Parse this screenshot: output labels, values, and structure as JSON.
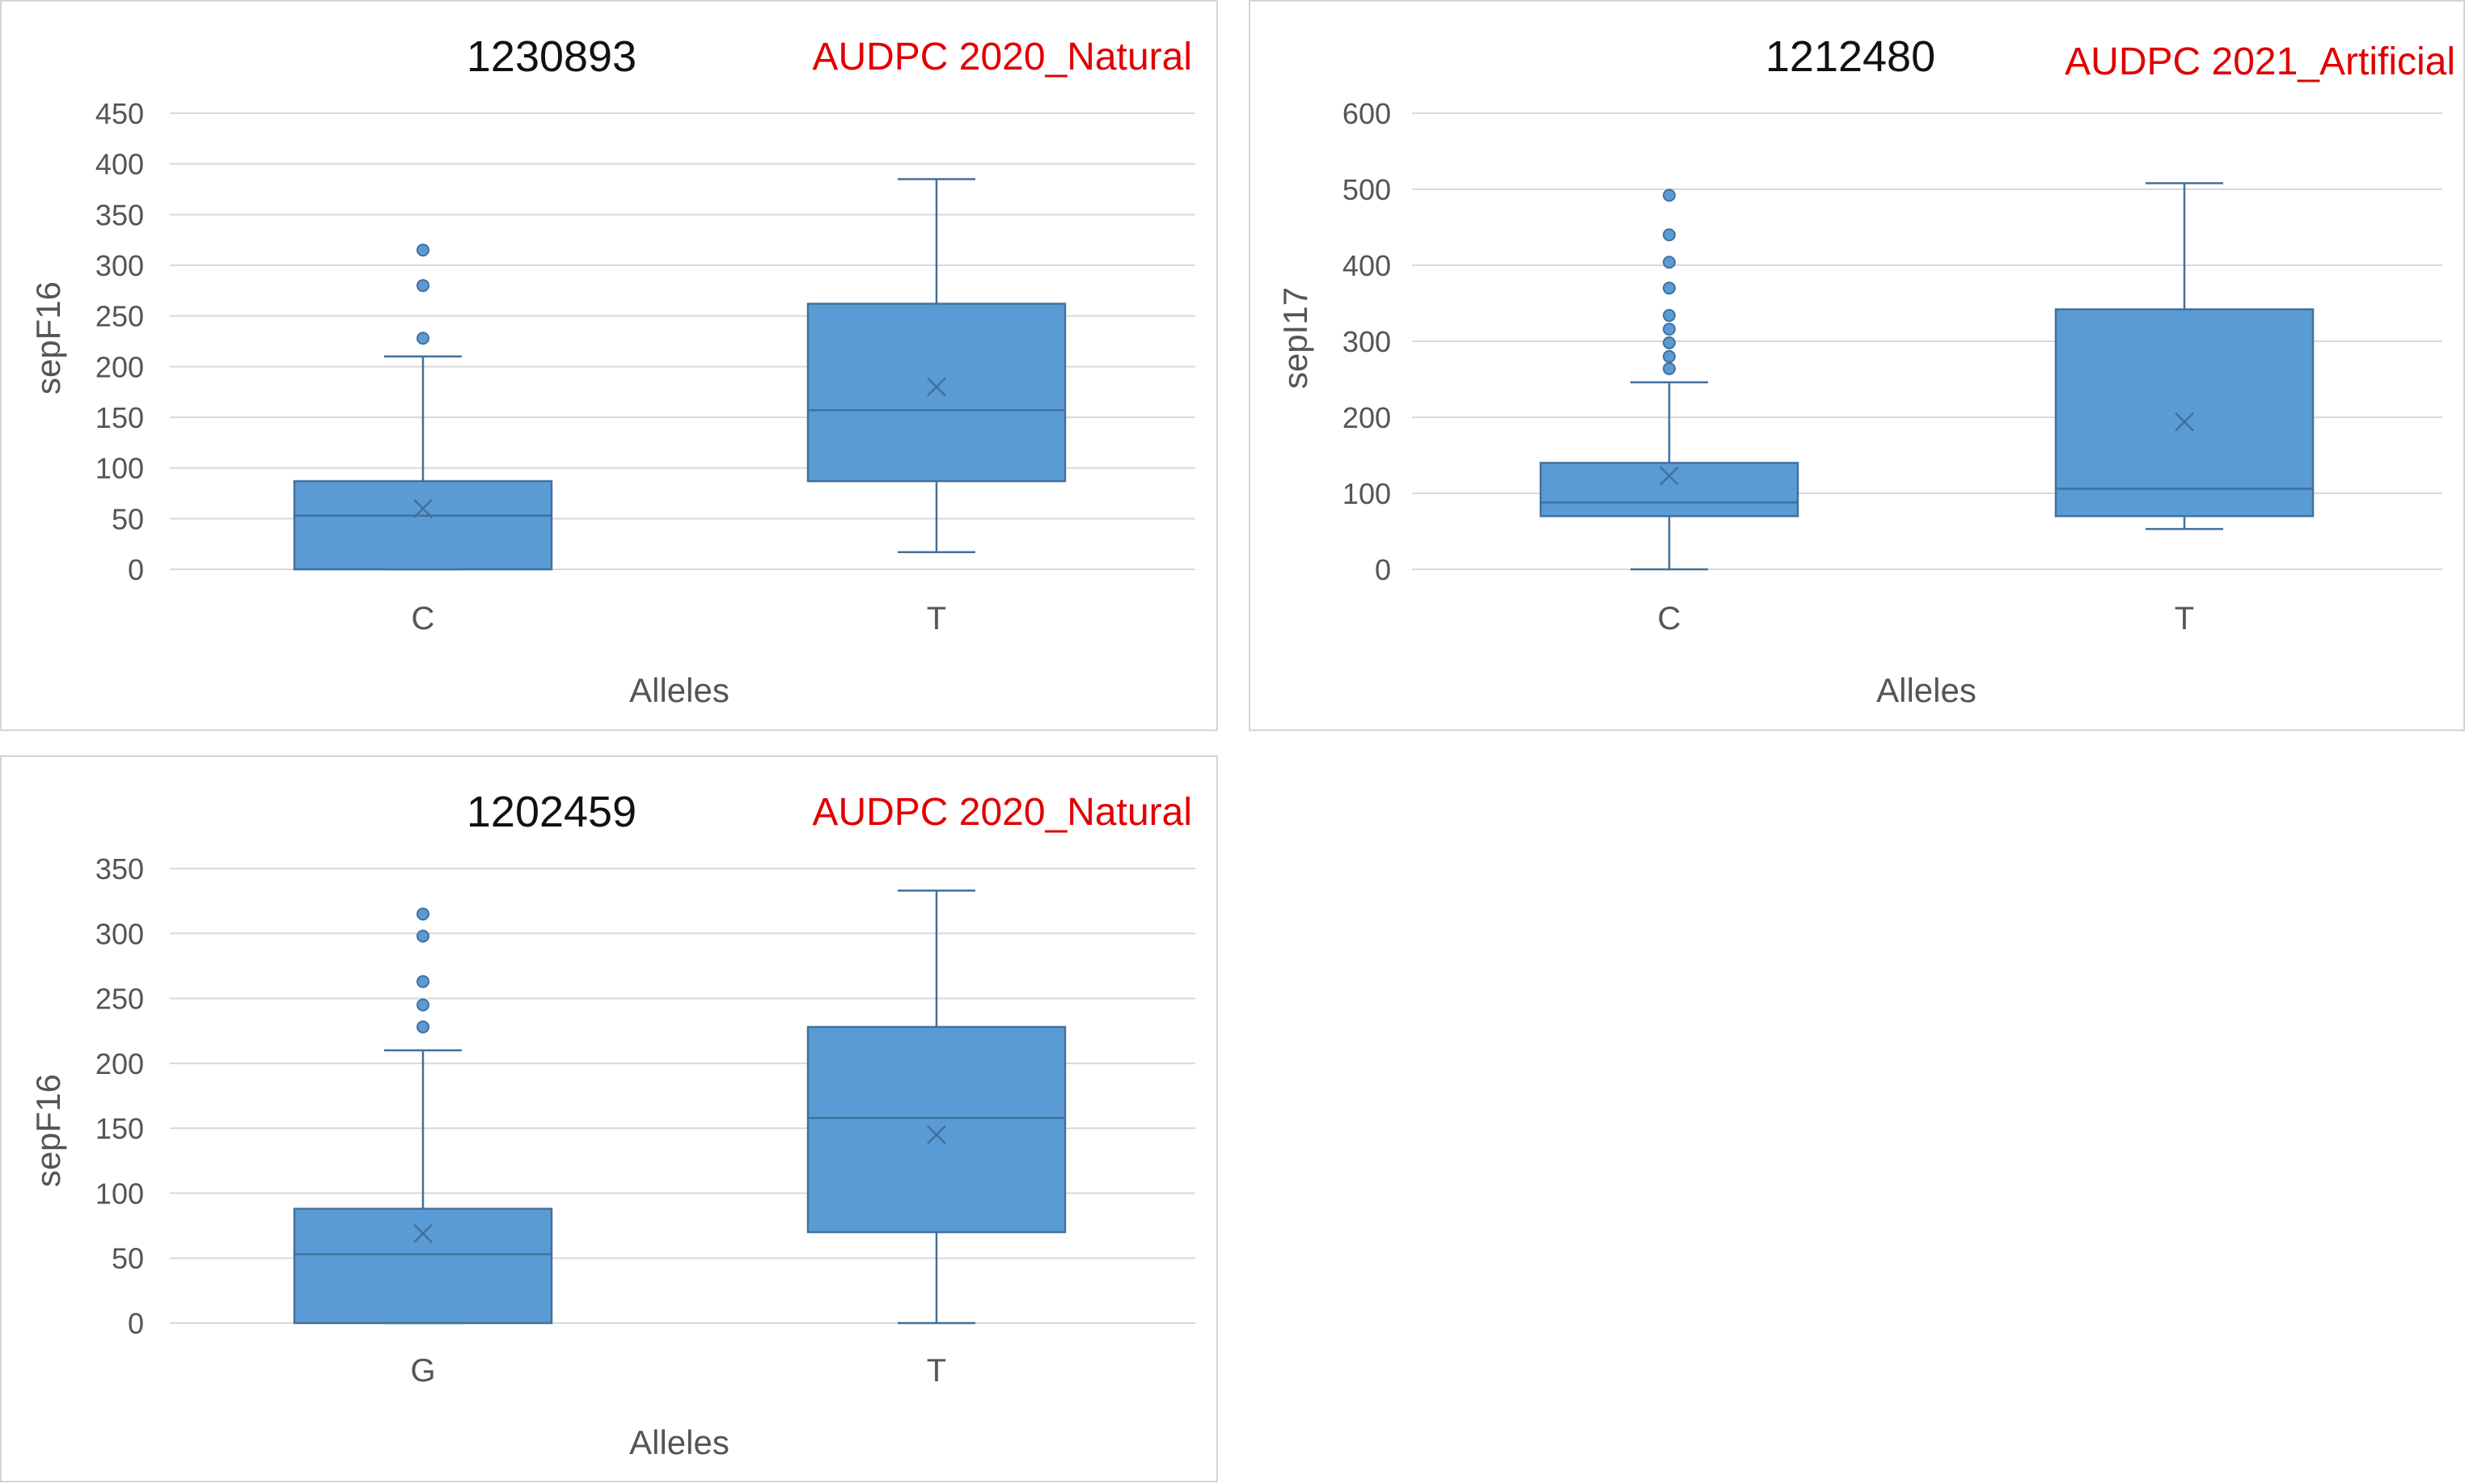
{
  "chart_data": [
    {
      "type": "box",
      "title": "1230893",
      "subtitle": "AUDPC 2020_Natural",
      "xlabel": "Alleles",
      "ylabel": "sepF16",
      "ylim": [
        0,
        450
      ],
      "yticks": [
        0,
        50,
        100,
        150,
        200,
        250,
        300,
        350,
        400,
        450
      ],
      "grid": true,
      "color": "#5b9bd5",
      "categories": [
        "C",
        "T"
      ],
      "boxes": [
        {
          "category": "C",
          "min": 0,
          "q1": 0,
          "median": 53,
          "q3": 87,
          "max": 210,
          "mean": 60,
          "outliers": [
            228,
            280,
            315
          ]
        },
        {
          "category": "T",
          "min": 17,
          "q1": 87,
          "median": 157,
          "q3": 262,
          "max": 385,
          "mean": 180,
          "outliers": []
        }
      ]
    },
    {
      "type": "box",
      "title": "1212480",
      "subtitle": "AUDPC 2021_Artificial",
      "xlabel": "Alleles",
      "ylabel": "sepI17",
      "ylim": [
        0,
        600
      ],
      "yticks": [
        0,
        100,
        200,
        300,
        400,
        500,
        600
      ],
      "grid": true,
      "color": "#5b9bd5",
      "categories": [
        "C",
        "T"
      ],
      "boxes": [
        {
          "category": "C",
          "min": 0,
          "q1": 70,
          "median": 88,
          "q3": 140,
          "max": 246,
          "mean": 123,
          "outliers": [
            264,
            280,
            298,
            316,
            334,
            370,
            404,
            440,
            492
          ]
        },
        {
          "category": "T",
          "min": 53,
          "q1": 70,
          "median": 106,
          "q3": 342,
          "max": 508,
          "mean": 194,
          "outliers": []
        }
      ]
    },
    {
      "type": "box",
      "title": "1202459",
      "subtitle": "AUDPC 2020_Natural",
      "xlabel": "Alleles",
      "ylabel": "sepF16",
      "ylim": [
        0,
        350
      ],
      "yticks": [
        0,
        50,
        100,
        150,
        200,
        250,
        300,
        350
      ],
      "grid": true,
      "color": "#5b9bd5",
      "categories": [
        "G",
        "T"
      ],
      "boxes": [
        {
          "category": "G",
          "min": 0,
          "q1": 0,
          "median": 53,
          "q3": 88,
          "max": 210,
          "mean": 69,
          "outliers": [
            228,
            245,
            263,
            298,
            315
          ]
        },
        {
          "category": "T",
          "min": 0,
          "q1": 70,
          "median": 158,
          "q3": 228,
          "max": 333,
          "mean": 145,
          "outliers": []
        }
      ]
    }
  ]
}
